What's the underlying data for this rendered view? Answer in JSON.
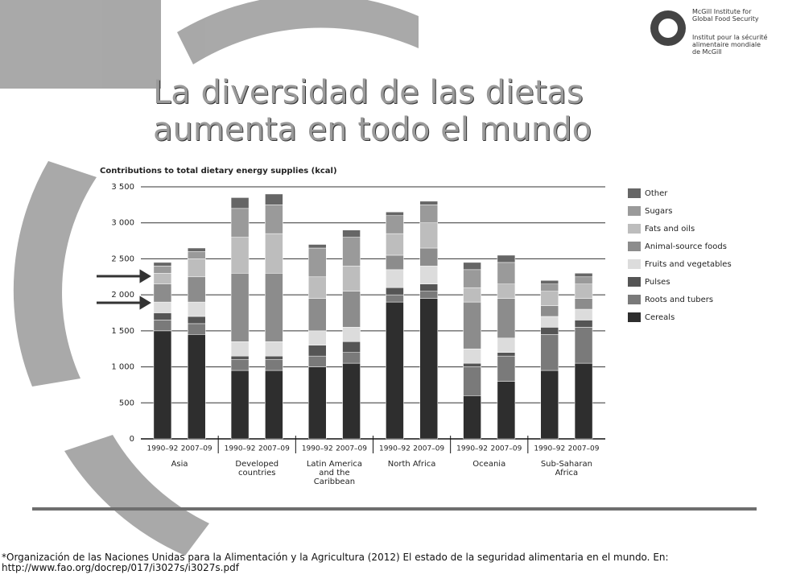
{
  "logo": {
    "line_en_1": "McGill Institute for",
    "line_en_2": "Global Food Security",
    "line_fr_1": "Institut pour la sécurité",
    "line_fr_2": "alimentaire mondiale",
    "line_fr_3": "de McGill"
  },
  "slide_title": "La diversidad de las dietas aumenta en todo el mundo",
  "chart_data": {
    "type": "stacked-bar",
    "y_label": "Contributions to total dietary energy supplies (kcal)",
    "categories": [
      "1990–92",
      "2007–09",
      "1990–92",
      "2007–09",
      "1990–92",
      "2007–09",
      "1990–92",
      "2007–09",
      "1990–92",
      "2007–09",
      "1990–92",
      "2007–09"
    ],
    "groups": [
      "Asia",
      "Developed countries",
      "Latin America and the Caribbean",
      "North Africa",
      "Oceania",
      "Sub-Saharan Africa"
    ],
    "series": [
      {
        "name": "Cereals",
        "color": "#2e2e2e",
        "values": [
          1500,
          1450,
          950,
          950,
          1000,
          1050,
          1900,
          1950,
          600,
          800,
          950,
          1050
        ]
      },
      {
        "name": "Roots and tubers",
        "color": "#7a7a7a",
        "values": [
          150,
          150,
          150,
          150,
          150,
          150,
          100,
          100,
          400,
          350,
          500,
          500
        ]
      },
      {
        "name": "Pulses",
        "color": "#555555",
        "values": [
          100,
          100,
          50,
          50,
          150,
          150,
          100,
          100,
          50,
          50,
          100,
          100
        ]
      },
      {
        "name": "Fruits and vegetables",
        "color": "#dcdcdc",
        "values": [
          150,
          200,
          200,
          200,
          200,
          200,
          250,
          250,
          200,
          200,
          150,
          150
        ]
      },
      {
        "name": "Animal-source foods",
        "color": "#8c8c8c",
        "values": [
          250,
          350,
          950,
          950,
          450,
          500,
          200,
          250,
          650,
          550,
          150,
          150
        ]
      },
      {
        "name": "Fats and oils",
        "color": "#bdbdbd",
        "values": [
          150,
          250,
          500,
          550,
          300,
          350,
          300,
          350,
          200,
          200,
          200,
          200
        ]
      },
      {
        "name": "Sugars",
        "color": "#9a9a9a",
        "values": [
          100,
          100,
          400,
          400,
          400,
          400,
          250,
          250,
          250,
          300,
          100,
          100
        ]
      },
      {
        "name": "Other",
        "color": "#666666",
        "values": [
          50,
          50,
          150,
          150,
          50,
          100,
          50,
          50,
          100,
          100,
          50,
          50
        ]
      }
    ],
    "ylim": [
      0,
      3500
    ],
    "yticks": [
      0,
      500,
      {
        "value": 1000,
        "label": "1 000"
      },
      {
        "value": 1500,
        "label": "1 500"
      },
      {
        "value": 2000,
        "label": "2 000"
      },
      {
        "value": 2500,
        "label": "2 500"
      },
      {
        "value": 3000,
        "label": "3 000"
      },
      {
        "value": 3500,
        "label": "3 500"
      }
    ],
    "grid": true
  },
  "footnote": {
    "line_1": "*Organización de las Naciones Unidas para la Alimentación y la Agricultura (2012) El estado de la seguridad alimentaria en el mundo. En:",
    "line_2": "http://www.fao.org/docrep/017/i3027s/i3027s.pdf"
  }
}
